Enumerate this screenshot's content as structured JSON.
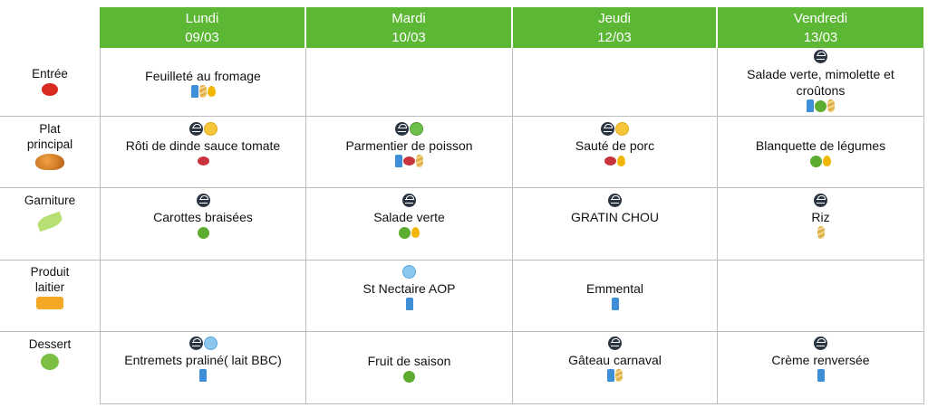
{
  "header": {
    "days": [
      {
        "name": "Lundi",
        "date": "09/03"
      },
      {
        "name": "Mardi",
        "date": "10/03"
      },
      {
        "name": "Jeudi",
        "date": "12/03"
      },
      {
        "name": "Vendredi",
        "date": "13/03"
      }
    ]
  },
  "rows": [
    {
      "label_line1": "Entrée",
      "label_line2": "",
      "icon": "tomato-icon"
    },
    {
      "label_line1": "Plat",
      "label_line2": "principal",
      "icon": "roast-turkey-icon"
    },
    {
      "label_line1": "Garniture",
      "label_line2": "",
      "icon": "peas-icon"
    },
    {
      "label_line1": "Produit",
      "label_line2": "laitier",
      "icon": "cheese-icon"
    },
    {
      "label_line1": "Dessert",
      "label_line2": "",
      "icon": "apple-icon"
    }
  ],
  "cells": {
    "r0c0": {
      "text": "Feuilleté au fromage"
    },
    "r0c3": {
      "text1": "Salade verte, mimolette et",
      "text2": "croûtons"
    },
    "r1c0": {
      "text": "Rôti de dinde sauce tomate"
    },
    "r1c1": {
      "text": "Parmentier de poisson"
    },
    "r1c2": {
      "text": "Sauté de porc"
    },
    "r1c3": {
      "text": "Blanquette de légumes"
    },
    "r2c0": {
      "text": "Carottes braisées"
    },
    "r2c1": {
      "text": "Salade verte"
    },
    "r2c2": {
      "text": "GRATIN CHOU"
    },
    "r2c3": {
      "text": "Riz"
    },
    "r3c1": {
      "text": "St Nectaire AOP"
    },
    "r3c2": {
      "text": "Emmental"
    },
    "r4c0": {
      "text": "Entremets praliné( lait BBC)"
    },
    "r4c1": {
      "text": "Fruit de saison"
    },
    "r4c2": {
      "text": "Gâteau carnaval"
    },
    "r4c3": {
      "text": "Crème renversée"
    }
  },
  "colors": {
    "header_green": "#5cb734",
    "grid": "#bdbdbd"
  }
}
